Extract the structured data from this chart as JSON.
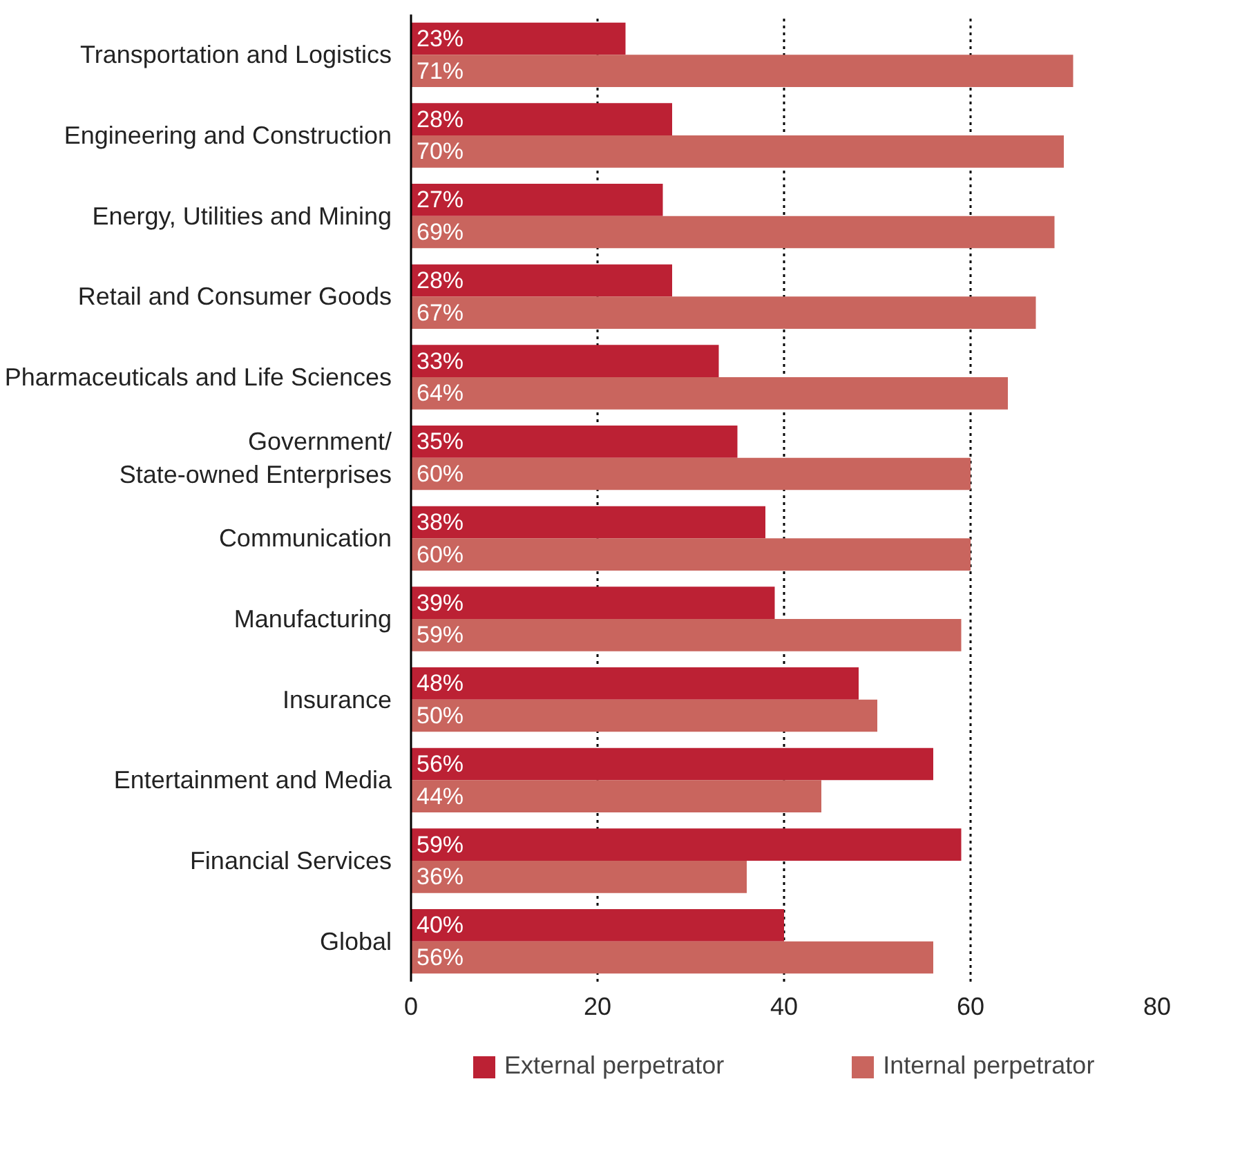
{
  "chart_data": {
    "type": "bar",
    "orientation": "horizontal",
    "categories": [
      "Transportation and Logistics",
      "Engineering and Construction",
      "Energy, Utilities and Mining",
      "Retail and Consumer Goods",
      "Pharmaceuticals and Life Sciences",
      "Government/\nState-owned Enterprises",
      "Communication",
      "Manufacturing",
      "Insurance",
      "Entertainment and Media",
      "Financial Services",
      "Global"
    ],
    "series": [
      {
        "name": "External perpetrator",
        "color": "#bc2134",
        "values": [
          23,
          28,
          27,
          28,
          33,
          35,
          38,
          39,
          48,
          56,
          59,
          40
        ],
        "value_labels": [
          "23%",
          "28%",
          "27%",
          "28%",
          "33%",
          "35%",
          "38%",
          "39%",
          "48%",
          "56%",
          "59%",
          "40%"
        ]
      },
      {
        "name": "Internal perpetrator",
        "color": "#c9655e",
        "values": [
          71,
          70,
          69,
          67,
          64,
          60,
          60,
          59,
          50,
          44,
          36,
          56
        ],
        "value_labels": [
          "71%",
          "70%",
          "69%",
          "67%",
          "64%",
          "60%",
          "60%",
          "59%",
          "50%",
          "44%",
          "36%",
          "56%"
        ]
      }
    ],
    "xlim": [
      0,
      80
    ],
    "xticks": [
      0,
      20,
      40,
      60,
      80
    ],
    "grid": "x",
    "legend": "bottom"
  }
}
